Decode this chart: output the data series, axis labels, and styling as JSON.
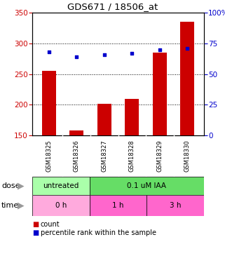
{
  "title": "GDS671 / 18506_at",
  "samples": [
    "GSM18325",
    "GSM18326",
    "GSM18327",
    "GSM18328",
    "GSM18329",
    "GSM18330"
  ],
  "counts": [
    255,
    158,
    201,
    210,
    285,
    335
  ],
  "percentiles": [
    68,
    64,
    66,
    67,
    70,
    71
  ],
  "bar_bottom": 150,
  "ylim_left": [
    150,
    350
  ],
  "ylim_right": [
    0,
    100
  ],
  "yticks_left": [
    150,
    200,
    250,
    300,
    350
  ],
  "yticks_right": [
    0,
    25,
    50,
    75,
    100
  ],
  "bar_color": "#cc0000",
  "dot_color": "#0000cc",
  "grid_color": "#000000",
  "dose_labels": [
    {
      "label": "untreated",
      "start": 0,
      "end": 2,
      "color": "#aaffaa"
    },
    {
      "label": "0.1 uM IAA",
      "start": 2,
      "end": 6,
      "color": "#66dd66"
    }
  ],
  "time_labels": [
    {
      "label": "0 h",
      "start": 0,
      "end": 2,
      "color": "#ffaadd"
    },
    {
      "label": "1 h",
      "start": 2,
      "end": 4,
      "color": "#ff66cc"
    },
    {
      "label": "3 h",
      "start": 4,
      "end": 6,
      "color": "#ff66cc"
    }
  ],
  "dose_row_label": "dose",
  "time_row_label": "time",
  "legend_count_label": "count",
  "legend_pct_label": "percentile rank within the sample",
  "tick_label_color_left": "#cc0000",
  "tick_label_color_right": "#0000cc",
  "bar_width": 0.5,
  "bg_color": "#ffffff",
  "plot_bg": "#ffffff",
  "xlabel_area_color": "#cccccc",
  "arrow_color": "#999999"
}
